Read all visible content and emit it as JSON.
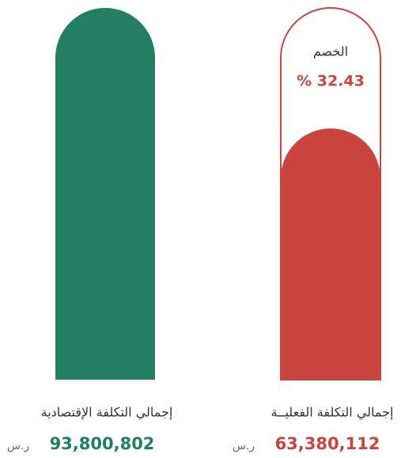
{
  "chart_data": {
    "type": "bar",
    "categories": [
      "إجمالي التكلفة الإقتصادية",
      "إجمالي التكلفة الفعليــة"
    ],
    "values": [
      93800802,
      63380112
    ],
    "value_labels": [
      "93,800,802",
      "63,380,112"
    ],
    "colors": [
      "#237e62",
      "#c9453e"
    ],
    "currency": "ر.س",
    "discount": {
      "label": "الخصم",
      "value": 32.43,
      "value_label": "% 32.43"
    }
  }
}
